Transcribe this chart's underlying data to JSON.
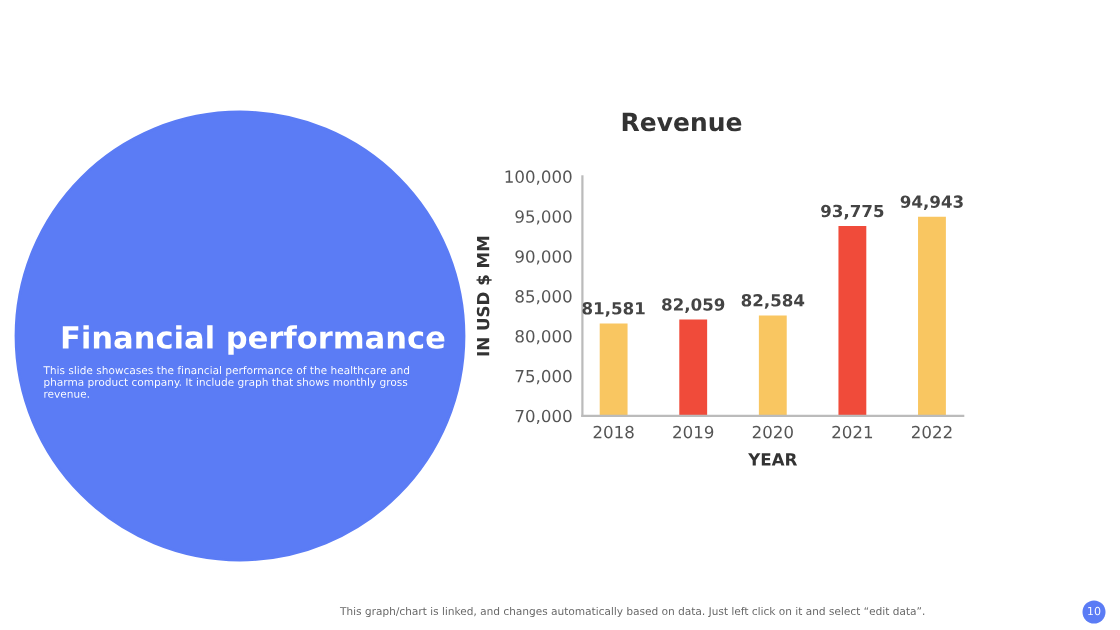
{
  "chart_data": {
    "type": "bar",
    "title": "Revenue",
    "xlabel": "YEAR",
    "ylabel": "IN USD $ MM",
    "categories": [
      "2018",
      "2019",
      "2020",
      "2021",
      "2022"
    ],
    "values": [
      81581,
      82059,
      82584,
      93775,
      94943
    ],
    "colors": [
      "#f9c661",
      "#f04b3a",
      "#f9c661",
      "#f04b3a",
      "#f9c661"
    ],
    "value_labels": [
      "81,581",
      "82,059",
      "82,584",
      "93,775",
      "94,943"
    ],
    "ylim": [
      70000,
      100000
    ],
    "yticks": [
      {
        "value": 70000,
        "label": "70,000"
      },
      {
        "value": 75000,
        "label": "75,000"
      },
      {
        "value": 80000,
        "label": "80,000"
      },
      {
        "value": 85000,
        "label": "85,000"
      },
      {
        "value": 90000,
        "label": "90,000"
      },
      {
        "value": 95000,
        "label": "95,000"
      },
      {
        "value": 100000,
        "label": "100,000"
      }
    ],
    "grid": false,
    "legend": false,
    "annotations": [
      "Financial performance",
      "This slide showcases the financial performance of the healthcare and pharma product company. It include graph that shows monthly gross revenue.",
      "This graph/chart is linked, and changes automatically based on data. Just left click on it and select “edit data”.",
      "10"
    ]
  }
}
